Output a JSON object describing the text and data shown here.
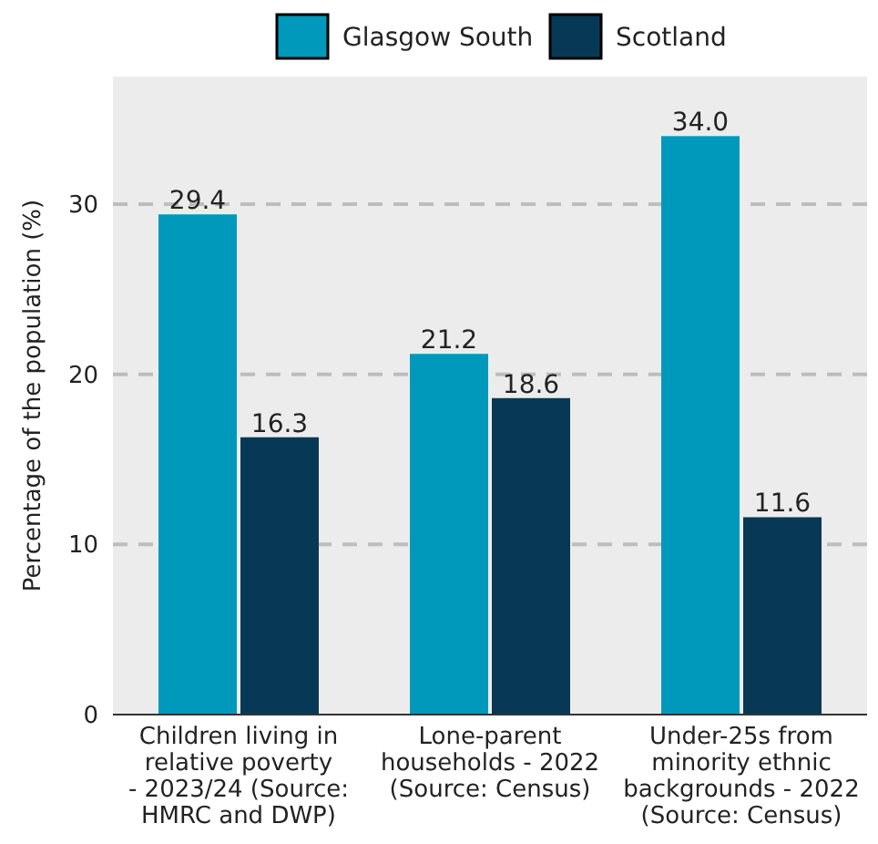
{
  "chart_data": {
    "type": "bar",
    "ylabel": "Percentage of the population (%)",
    "categories": [
      "Children living in\nrelative poverty\n- 2023/24 (Source:\nHMRC and DWP)",
      "Lone-parent\nhouseholds - 2022\n(Source: Census)",
      "Under-25s from\nminority ethnic\nbackgrounds - 2022\n(Source: Census)"
    ],
    "series": [
      {
        "name": "Glasgow South",
        "color": "#0099bc",
        "values": [
          29.4,
          21.2,
          34.0
        ],
        "value_labels": [
          "29.4",
          "21.2",
          "34.0"
        ]
      },
      {
        "name": "Scotland",
        "color": "#073956",
        "values": [
          16.3,
          18.6,
          11.6
        ],
        "value_labels": [
          "16.3",
          "18.6",
          "11.6"
        ]
      }
    ],
    "ylim": [
      0,
      37.5
    ],
    "yticks": [
      0,
      10,
      20,
      30
    ],
    "grid": "y",
    "legend": "top"
  }
}
